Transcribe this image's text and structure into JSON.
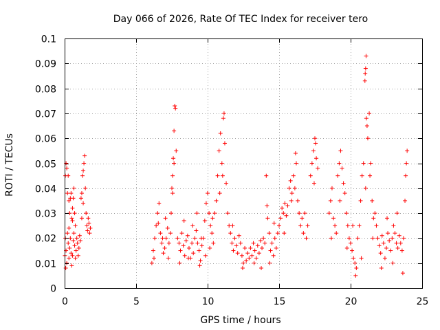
{
  "chart_data": {
    "type": "scatter",
    "title": "Day 066 of 2026, Rate Of TEC Index for receiver tero",
    "xlabel": "GPS time / hours",
    "ylabel": "ROTI / TECUs",
    "xlim": [
      0,
      25
    ],
    "ylim": [
      0,
      0.1
    ],
    "x_ticks": [
      0,
      5,
      10,
      15,
      20,
      25
    ],
    "x_tick_labels": [
      "0",
      "5",
      "10",
      "15",
      "20",
      "25"
    ],
    "y_ticks": [
      0,
      0.01,
      0.02,
      0.03,
      0.04,
      0.05,
      0.06,
      0.07,
      0.08,
      0.09,
      0.1
    ],
    "y_tick_labels": [
      "0",
      "0.01",
      "0.02",
      "0.03",
      "0.04",
      "0.05",
      "0.06",
      "0.07",
      "0.08",
      "0.09",
      "0.1"
    ],
    "grid": true,
    "marker": "+",
    "color": "#ff0000",
    "series": [
      {
        "name": "tero",
        "points": [
          [
            0.05,
            0.045
          ],
          [
            0.1,
            0.05
          ],
          [
            0.15,
            0.048
          ],
          [
            0.2,
            0.038
          ],
          [
            0.25,
            0.045
          ],
          [
            0.3,
            0.035
          ],
          [
            0.35,
            0.03
          ],
          [
            0.4,
            0.036
          ],
          [
            0.45,
            0.038
          ],
          [
            0.5,
            0.028
          ],
          [
            0.55,
            0.032
          ],
          [
            0.6,
            0.036
          ],
          [
            0.65,
            0.04
          ],
          [
            0.7,
            0.03
          ],
          [
            0.75,
            0.025
          ],
          [
            0.05,
            0.02
          ],
          [
            0.1,
            0.015
          ],
          [
            0.15,
            0.01
          ],
          [
            0.2,
            0.022
          ],
          [
            0.25,
            0.018
          ],
          [
            0.3,
            0.012
          ],
          [
            0.35,
            0.016
          ],
          [
            0.4,
            0.02
          ],
          [
            0.45,
            0.014
          ],
          [
            0.5,
            0.009
          ],
          [
            0.55,
            0.013
          ],
          [
            0.6,
            0.019
          ],
          [
            0.65,
            0.022
          ],
          [
            0.7,
            0.017
          ],
          [
            0.75,
            0.012
          ],
          [
            0.8,
            0.015
          ],
          [
            0.85,
            0.02
          ],
          [
            0.9,
            0.018
          ],
          [
            0.95,
            0.013
          ],
          [
            1.0,
            0.016
          ],
          [
            1.05,
            0.021
          ],
          [
            1.1,
            0.019
          ],
          [
            0.02,
            0.013
          ],
          [
            0.08,
            0.008
          ],
          [
            0.3,
            0.024
          ],
          [
            0.55,
            0.027
          ],
          [
            1.15,
            0.036
          ],
          [
            1.2,
            0.038
          ],
          [
            1.25,
            0.045
          ],
          [
            1.3,
            0.047
          ],
          [
            1.35,
            0.05
          ],
          [
            1.4,
            0.053
          ],
          [
            1.45,
            0.04
          ],
          [
            1.5,
            0.03
          ],
          [
            1.55,
            0.025
          ],
          [
            1.6,
            0.023
          ],
          [
            1.65,
            0.028
          ],
          [
            1.7,
            0.026
          ],
          [
            1.75,
            0.022
          ],
          [
            1.8,
            0.024
          ],
          [
            1.3,
            0.034
          ],
          [
            1.2,
            0.028
          ],
          [
            6.1,
            0.01
          ],
          [
            6.2,
            0.015
          ],
          [
            6.3,
            0.02
          ],
          [
            6.4,
            0.025
          ],
          [
            6.5,
            0.03
          ],
          [
            6.6,
            0.034
          ],
          [
            6.7,
            0.022
          ],
          [
            6.8,
            0.018
          ],
          [
            6.9,
            0.014
          ],
          [
            7.0,
            0.016
          ],
          [
            7.1,
            0.02
          ],
          [
            7.2,
            0.024
          ],
          [
            7.3,
            0.018
          ],
          [
            7.4,
            0.022
          ],
          [
            6.25,
            0.012
          ],
          [
            6.55,
            0.026
          ],
          [
            6.85,
            0.02
          ],
          [
            7.05,
            0.028
          ],
          [
            7.25,
            0.012
          ],
          [
            7.45,
            0.03
          ],
          [
            7.5,
            0.04
          ],
          [
            7.55,
            0.045
          ],
          [
            7.6,
            0.052
          ],
          [
            7.65,
            0.063
          ],
          [
            7.7,
            0.073
          ],
          [
            7.75,
            0.072
          ],
          [
            7.8,
            0.055
          ],
          [
            7.55,
            0.038
          ],
          [
            7.65,
            0.05
          ],
          [
            7.9,
            0.02
          ],
          [
            8.0,
            0.018
          ],
          [
            8.1,
            0.015
          ],
          [
            8.2,
            0.022
          ],
          [
            8.3,
            0.017
          ],
          [
            8.4,
            0.013
          ],
          [
            8.5,
            0.019
          ],
          [
            8.6,
            0.021
          ],
          [
            8.7,
            0.016
          ],
          [
            8.8,
            0.012
          ],
          [
            8.9,
            0.018
          ],
          [
            9.0,
            0.014
          ],
          [
            9.1,
            0.02
          ],
          [
            9.2,
            0.023
          ],
          [
            9.3,
            0.018
          ],
          [
            9.4,
            0.015
          ],
          [
            9.5,
            0.011
          ],
          [
            9.6,
            0.017
          ],
          [
            9.7,
            0.02
          ],
          [
            9.8,
            0.027
          ],
          [
            9.9,
            0.034
          ],
          [
            10.0,
            0.038
          ],
          [
            10.1,
            0.03
          ],
          [
            10.2,
            0.025
          ],
          [
            10.3,
            0.022
          ],
          [
            10.4,
            0.018
          ],
          [
            8.05,
            0.01
          ],
          [
            8.35,
            0.027
          ],
          [
            8.65,
            0.012
          ],
          [
            8.95,
            0.025
          ],
          [
            9.25,
            0.03
          ],
          [
            9.55,
            0.02
          ],
          [
            9.85,
            0.013
          ],
          [
            10.15,
            0.016
          ],
          [
            10.35,
            0.028
          ],
          [
            9.45,
            0.009
          ],
          [
            10.5,
            0.03
          ],
          [
            10.6,
            0.035
          ],
          [
            10.7,
            0.045
          ],
          [
            10.8,
            0.055
          ],
          [
            10.9,
            0.062
          ],
          [
            11.0,
            0.05
          ],
          [
            11.1,
            0.068
          ],
          [
            11.15,
            0.07
          ],
          [
            11.2,
            0.058
          ],
          [
            11.3,
            0.042
          ],
          [
            11.4,
            0.03
          ],
          [
            11.5,
            0.025
          ],
          [
            10.85,
            0.038
          ],
          [
            11.05,
            0.045
          ],
          [
            11.6,
            0.022
          ],
          [
            11.7,
            0.018
          ],
          [
            11.8,
            0.015
          ],
          [
            11.9,
            0.02
          ],
          [
            12.0,
            0.017
          ],
          [
            12.1,
            0.014
          ],
          [
            12.2,
            0.021
          ],
          [
            12.3,
            0.018
          ],
          [
            12.4,
            0.013
          ],
          [
            12.5,
            0.01
          ],
          [
            12.6,
            0.016
          ],
          [
            12.7,
            0.011
          ],
          [
            12.8,
            0.014
          ],
          [
            12.9,
            0.012
          ],
          [
            13.0,
            0.016
          ],
          [
            13.1,
            0.013
          ],
          [
            13.2,
            0.018
          ],
          [
            13.3,
            0.015
          ],
          [
            13.4,
            0.012
          ],
          [
            13.5,
            0.017
          ],
          [
            13.6,
            0.014
          ],
          [
            13.7,
            0.019
          ],
          [
            13.8,
            0.016
          ],
          [
            13.9,
            0.02
          ],
          [
            11.75,
            0.025
          ],
          [
            12.45,
            0.008
          ],
          [
            13.25,
            0.01
          ],
          [
            13.75,
            0.008
          ],
          [
            14.0,
            0.018
          ],
          [
            14.1,
            0.045
          ],
          [
            14.2,
            0.028
          ],
          [
            14.3,
            0.022
          ],
          [
            14.4,
            0.015
          ],
          [
            14.5,
            0.018
          ],
          [
            14.6,
            0.013
          ],
          [
            14.7,
            0.02
          ],
          [
            14.8,
            0.016
          ],
          [
            14.9,
            0.022
          ],
          [
            14.15,
            0.033
          ],
          [
            14.35,
            0.01
          ],
          [
            14.65,
            0.026
          ],
          [
            15.0,
            0.025
          ],
          [
            15.1,
            0.028
          ],
          [
            15.2,
            0.032
          ],
          [
            15.3,
            0.03
          ],
          [
            15.4,
            0.034
          ],
          [
            15.5,
            0.029
          ],
          [
            15.6,
            0.033
          ],
          [
            15.7,
            0.04
          ],
          [
            15.8,
            0.043
          ],
          [
            15.9,
            0.038
          ],
          [
            16.0,
            0.045
          ],
          [
            16.1,
            0.04
          ],
          [
            16.2,
            0.05
          ],
          [
            16.3,
            0.035
          ],
          [
            16.4,
            0.03
          ],
          [
            16.5,
            0.025
          ],
          [
            16.6,
            0.028
          ],
          [
            16.7,
            0.022
          ],
          [
            16.8,
            0.03
          ],
          [
            16.9,
            0.02
          ],
          [
            17.0,
            0.025
          ],
          [
            15.35,
            0.022
          ],
          [
            15.85,
            0.035
          ],
          [
            16.15,
            0.054
          ],
          [
            17.2,
            0.045
          ],
          [
            17.3,
            0.05
          ],
          [
            17.4,
            0.055
          ],
          [
            17.5,
            0.06
          ],
          [
            17.55,
            0.058
          ],
          [
            17.6,
            0.052
          ],
          [
            17.7,
            0.048
          ],
          [
            17.45,
            0.042
          ],
          [
            18.5,
            0.03
          ],
          [
            18.6,
            0.035
          ],
          [
            18.7,
            0.04
          ],
          [
            18.8,
            0.028
          ],
          [
            18.9,
            0.025
          ],
          [
            19.0,
            0.022
          ],
          [
            19.1,
            0.045
          ],
          [
            19.2,
            0.05
          ],
          [
            19.3,
            0.055
          ],
          [
            19.4,
            0.048
          ],
          [
            19.5,
            0.042
          ],
          [
            19.6,
            0.038
          ],
          [
            19.7,
            0.03
          ],
          [
            19.8,
            0.025
          ],
          [
            19.9,
            0.02
          ],
          [
            20.0,
            0.018
          ],
          [
            20.1,
            0.015
          ],
          [
            20.2,
            0.012
          ],
          [
            20.3,
            0.01
          ],
          [
            20.4,
            0.008
          ],
          [
            18.65,
            0.02
          ],
          [
            19.25,
            0.035
          ],
          [
            19.75,
            0.016
          ],
          [
            20.15,
            0.025
          ],
          [
            20.35,
            0.005
          ],
          [
            20.5,
            0.02
          ],
          [
            20.6,
            0.025
          ],
          [
            20.7,
            0.035
          ],
          [
            20.8,
            0.045
          ],
          [
            20.9,
            0.05
          ],
          [
            21.0,
            0.083
          ],
          [
            21.02,
            0.086
          ],
          [
            21.05,
            0.088
          ],
          [
            21.08,
            0.093
          ],
          [
            21.1,
            0.068
          ],
          [
            21.15,
            0.065
          ],
          [
            21.2,
            0.06
          ],
          [
            21.3,
            0.07
          ],
          [
            21.4,
            0.05
          ],
          [
            21.5,
            0.035
          ],
          [
            21.6,
            0.028
          ],
          [
            21.7,
            0.03
          ],
          [
            21.8,
            0.025
          ],
          [
            20.75,
            0.012
          ],
          [
            21.05,
            0.04
          ],
          [
            21.35,
            0.045
          ],
          [
            21.55,
            0.02
          ],
          [
            21.9,
            0.02
          ],
          [
            22.0,
            0.017
          ],
          [
            22.1,
            0.014
          ],
          [
            22.2,
            0.021
          ],
          [
            22.3,
            0.018
          ],
          [
            22.4,
            0.012
          ],
          [
            22.5,
            0.016
          ],
          [
            22.6,
            0.022
          ],
          [
            22.7,
            0.019
          ],
          [
            22.8,
            0.015
          ],
          [
            22.9,
            0.02
          ],
          [
            23.0,
            0.025
          ],
          [
            23.1,
            0.022
          ],
          [
            23.2,
            0.018
          ],
          [
            23.3,
            0.016
          ],
          [
            23.4,
            0.021
          ],
          [
            23.5,
            0.018
          ],
          [
            23.6,
            0.015
          ],
          [
            23.7,
            0.02
          ],
          [
            23.8,
            0.035
          ],
          [
            23.85,
            0.045
          ],
          [
            23.9,
            0.05
          ],
          [
            23.95,
            0.055
          ],
          [
            22.15,
            0.008
          ],
          [
            22.55,
            0.028
          ],
          [
            22.95,
            0.01
          ],
          [
            23.25,
            0.03
          ],
          [
            23.65,
            0.006
          ]
        ]
      }
    ]
  }
}
